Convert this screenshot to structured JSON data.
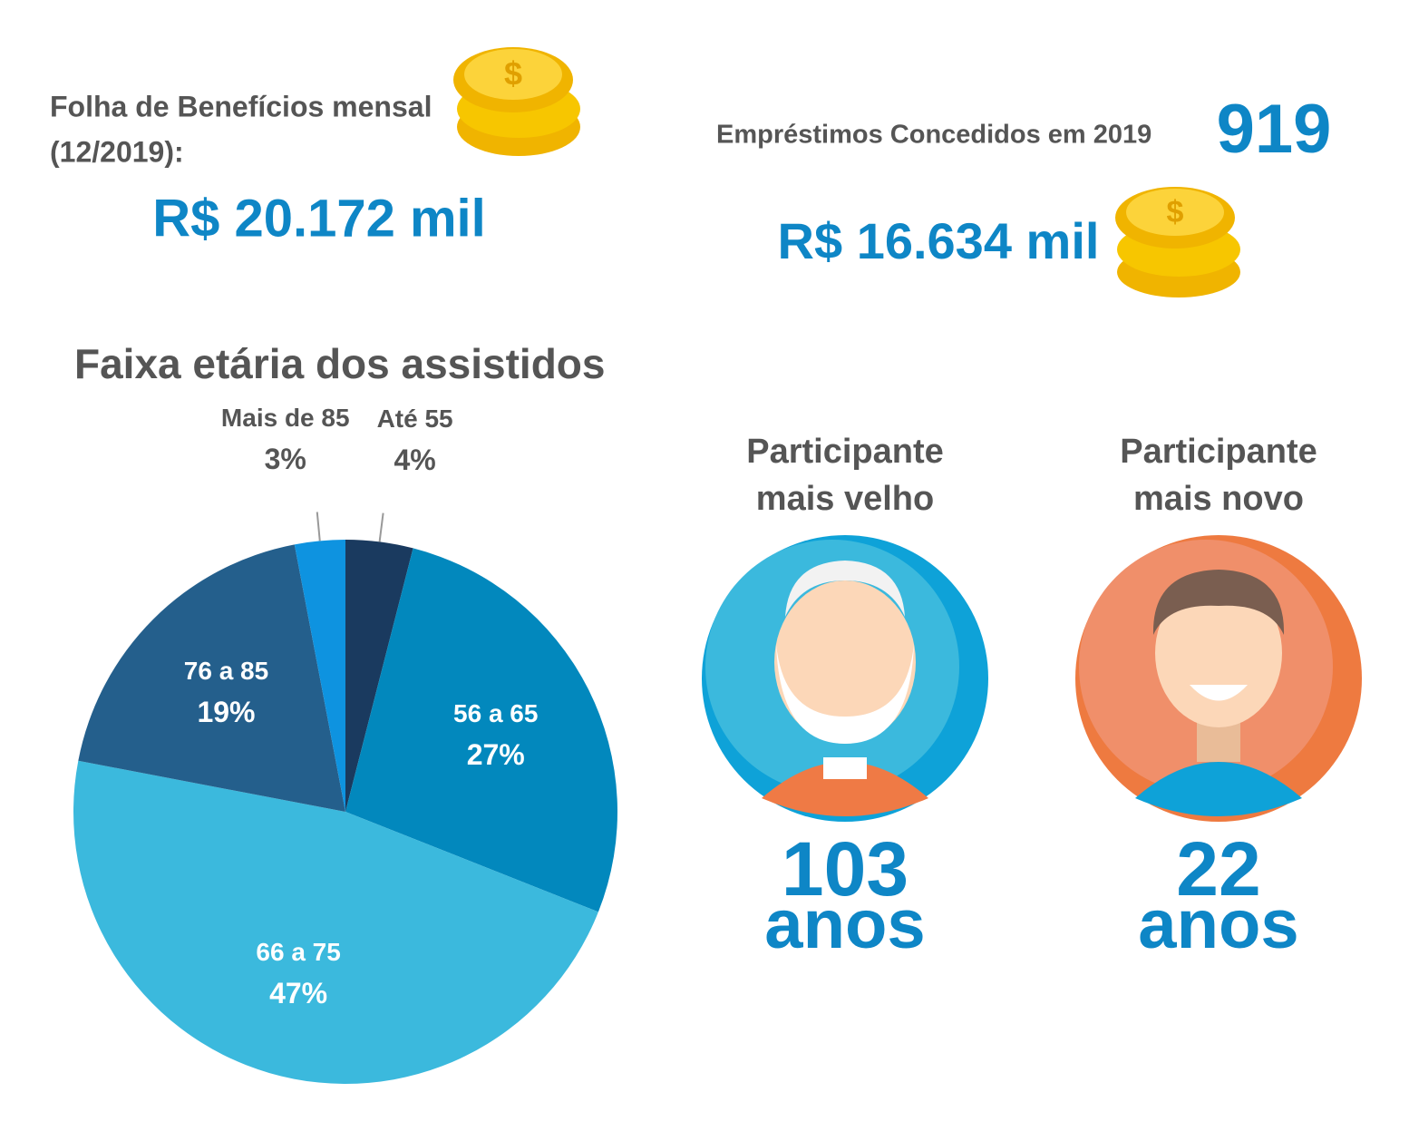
{
  "header": {
    "payroll_label": [
      "Folha de Benefícios mensal",
      "(12/2019):"
    ],
    "payroll_value": "R$ 20.172 mil",
    "loans_label": "Empréstimos Concedidos em 2019",
    "loans_count": "919",
    "loans_value": "R$ 16.634 mil"
  },
  "chart_data": {
    "type": "pie",
    "title": "Faixa etária dos assistidos",
    "categories": [
      "Até 55",
      "56 a 65",
      "66 a 75",
      "76 a 85",
      "Mais de 85"
    ],
    "values": [
      4,
      27,
      47,
      19,
      3
    ],
    "value_labels": [
      "4%",
      "27%",
      "47%",
      "19%",
      "3%"
    ],
    "colors": [
      "#1a3a5f",
      "#0288bd",
      "#3bb9dd",
      "#245f8c",
      "#0e93e0"
    ]
  },
  "participants": [
    {
      "label": [
        "Participante",
        "mais velho"
      ],
      "age": "103",
      "unit": "anos"
    },
    {
      "label": [
        "Participante",
        "mais novo"
      ],
      "age": "22",
      "unit": "anos"
    }
  ]
}
